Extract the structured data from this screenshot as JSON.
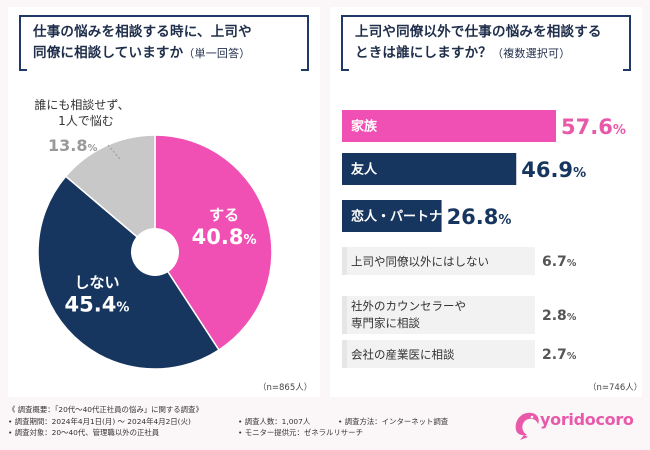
{
  "left": {
    "question": "仕事の悩みを相談する時に、上司や同僚に相談していますか",
    "question_line1": "仕事の悩みを相談する時に、上司や",
    "question_line2": "同僚に相談していますか",
    "question_note": "（単一回答）",
    "n_label": "（n=865人）"
  },
  "right": {
    "question_line1": "上司や同僚以外で仕事の悩みを相談する",
    "question_line2": "ときは誰にしますか？",
    "question_note": "（複数選択可）",
    "n_label": "（n=746人）"
  },
  "chart_data": [
    {
      "type": "pie",
      "style": "donut",
      "slices": [
        {
          "label": "する",
          "value": 40.8,
          "pct_main": "40.8",
          "color": "#f050b4"
        },
        {
          "label": "しない",
          "value": 45.4,
          "pct_main": "45.4",
          "color": "#17365f"
        },
        {
          "label_line1": "誰にも相談せず、",
          "label_line2": "1人で悩む",
          "value": 13.8,
          "pct_main": "13.8",
          "color": "#c8c8c8"
        }
      ],
      "unit": "%"
    },
    {
      "type": "bar",
      "orientation": "horizontal",
      "categories": [
        "家族",
        "友人",
        "恋人・パートナー",
        "上司や同僚以外にはしない",
        "社外のカウンセラーや専門家に相談",
        "会社の産業医に相談"
      ],
      "category_lines": [
        [
          "家族"
        ],
        [
          "友人"
        ],
        [
          "恋人・パートナー"
        ],
        [
          "上司や同僚以外にはしない"
        ],
        [
          "社外のカウンセラーや",
          "専門家に相談"
        ],
        [
          "会社の産業医に相談"
        ]
      ],
      "values": [
        57.6,
        46.9,
        26.8,
        6.7,
        2.8,
        2.7
      ],
      "pct_main": [
        "57.6",
        "46.9",
        "26.8",
        "6.7",
        "2.8",
        "2.7"
      ],
      "colors": [
        "#f050b4",
        "#17365f",
        "#17365f",
        "#e6e6e6",
        "#e6e6e6",
        "#e6e6e6"
      ],
      "text_colors": [
        "#e85aa9",
        "#17365f",
        "#17365f",
        "#555555",
        "#555555",
        "#555555"
      ],
      "unit": "%",
      "xlim": [
        0,
        57.6
      ]
    }
  ],
  "footer": {
    "title": "《 調査概要：「20代〜40代正社員の悩み」に関する調査》",
    "period": "• 調査期間：2024年4月1日(月) 〜 2024年4月2日(火)",
    "respondents": "• 調査人数：1,007人",
    "method": "• 調査方法：インターネット調査",
    "target": "• 調査対象：20〜40代、管理職以外の正社員",
    "provider": "• モニター提供元：ゼネラルリサーチ"
  },
  "logo": {
    "text": "yoridocoro",
    "color": "#e85aa9"
  }
}
